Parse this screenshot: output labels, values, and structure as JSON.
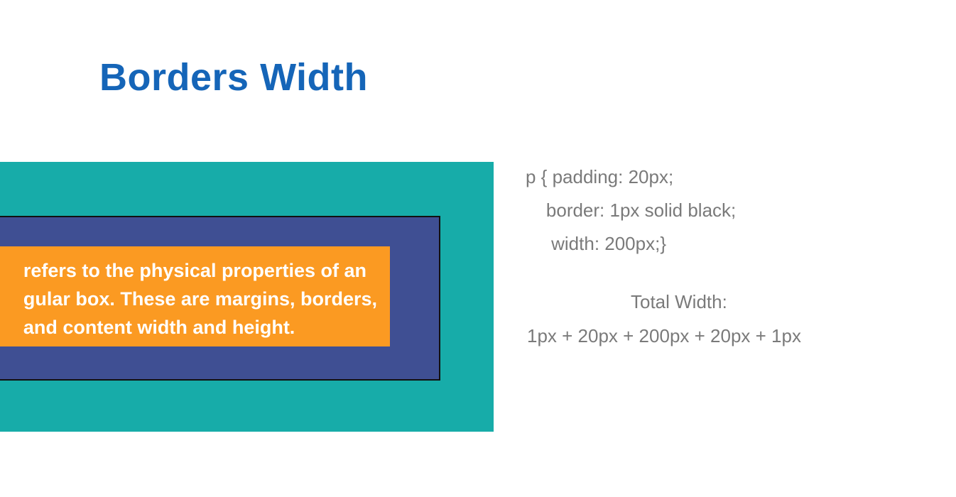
{
  "slide": {
    "title": "Borders Width"
  },
  "diagram": {
    "colors": {
      "margin": "#17aca9",
      "border": "#3f4f93",
      "content": "#fb9a22",
      "title": "#1565b8",
      "code_text": "#7a7a7a"
    },
    "content_lines": [
      "refers to the physical properties of an",
      "gular box. These are margins, borders,",
      "and content width and height."
    ]
  },
  "code": {
    "lines": [
      "p { padding: 20px;",
      "    border: 1px solid black;",
      "     width: 200px;}"
    ]
  },
  "total": {
    "label": "Total Width:",
    "formula": "1px + 20px + 200px + 20px + 1px"
  }
}
